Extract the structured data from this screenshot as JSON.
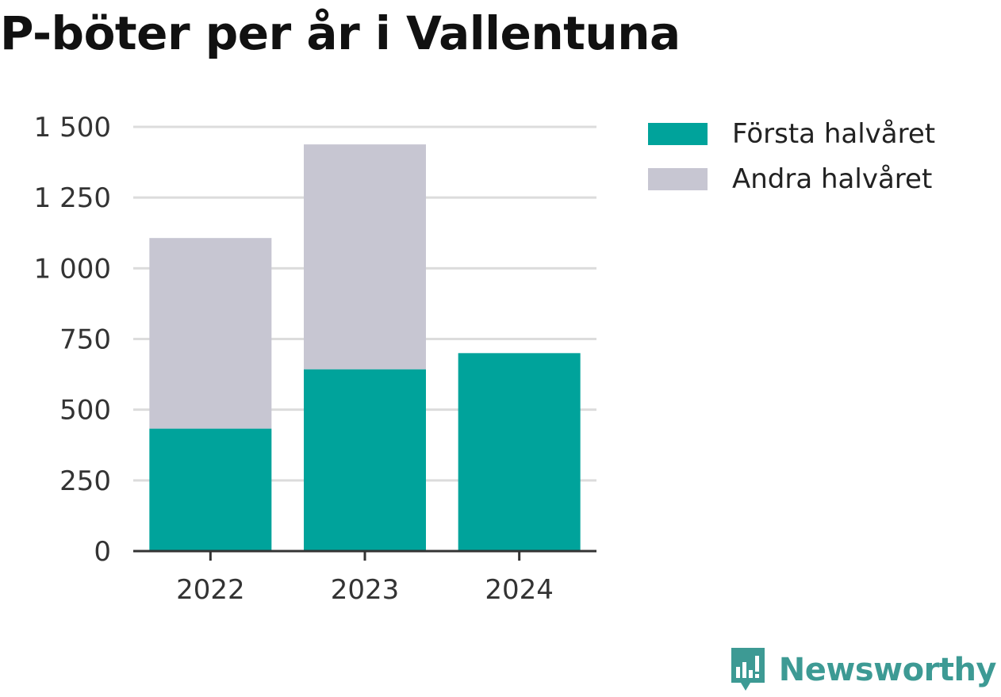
{
  "chart_data": {
    "type": "bar",
    "stacked": true,
    "title": "P-böter per år i Vallentuna",
    "categories": [
      "2022",
      "2023",
      "2024"
    ],
    "series": [
      {
        "name": "Första halvåret",
        "color": "#00a39b",
        "values": [
          433,
          643,
          700
        ]
      },
      {
        "name": "Andra halvåret",
        "color": "#c7c6d2",
        "values": [
          674,
          795,
          0
        ]
      }
    ],
    "yticks": [
      0,
      250,
      500,
      750,
      1000,
      1250,
      1500
    ],
    "ytick_labels": [
      "0",
      "250",
      "500",
      "750",
      "1 000",
      "1 250",
      "1 500"
    ],
    "ylim": [
      0,
      1500
    ],
    "grid": true,
    "legend_position": "right"
  },
  "brand": {
    "label": "Newsworthy",
    "icon": "newsworthy-logo-icon",
    "color": "#3d9a94"
  }
}
